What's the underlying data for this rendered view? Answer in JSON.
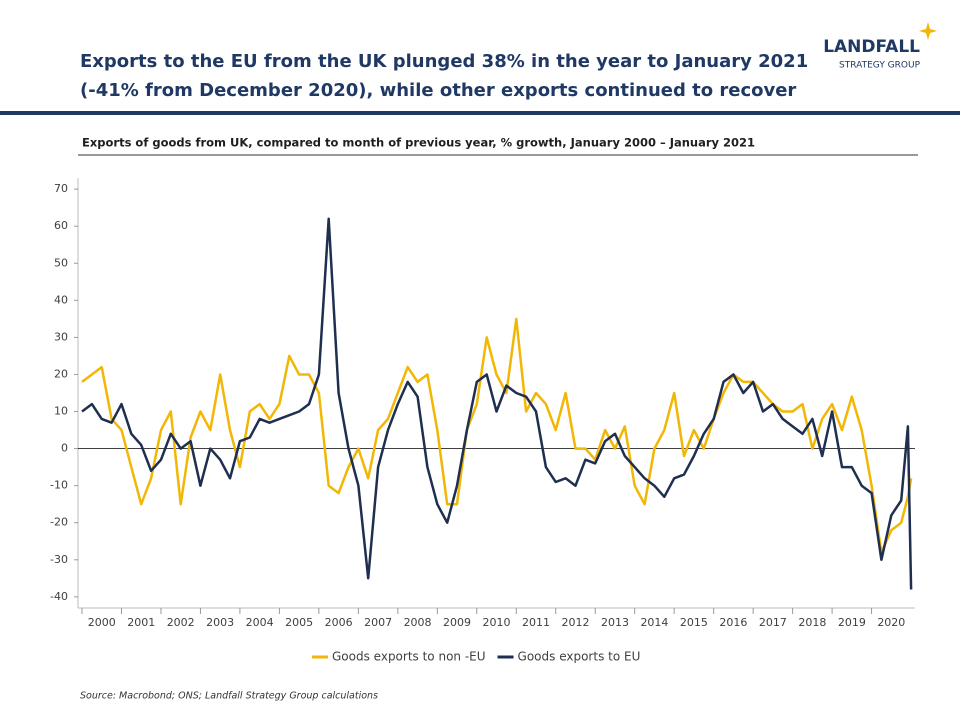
{
  "header": {
    "title_line1": "Exports to the EU from the UK plunged 38% in the year to January 2021",
    "title_line2": "(-41% from December 2020), while other exports continued to recover",
    "logo_name": "LANDFALL",
    "logo_tagline": "STRATEGY GROUP"
  },
  "chart_data": {
    "type": "line",
    "subtitle": "Exports of goods from UK, compared to month of previous year, % growth, January 2000 – January 2021",
    "x": [
      2000,
      2000.25,
      2000.5,
      2000.75,
      2001,
      2001.25,
      2001.5,
      2001.75,
      2002,
      2002.25,
      2002.5,
      2002.75,
      2003,
      2003.25,
      2003.5,
      2003.75,
      2004,
      2004.25,
      2004.5,
      2004.75,
      2005,
      2005.25,
      2005.5,
      2005.75,
      2006,
      2006.25,
      2006.5,
      2006.75,
      2007,
      2007.25,
      2007.5,
      2007.75,
      2008,
      2008.25,
      2008.5,
      2008.75,
      2009,
      2009.25,
      2009.5,
      2009.75,
      2010,
      2010.25,
      2010.5,
      2010.75,
      2011,
      2011.25,
      2011.5,
      2011.75,
      2012,
      2012.25,
      2012.5,
      2012.75,
      2013,
      2013.25,
      2013.5,
      2013.75,
      2014,
      2014.25,
      2014.5,
      2014.75,
      2015,
      2015.25,
      2015.5,
      2015.75,
      2016,
      2016.25,
      2016.5,
      2016.75,
      2017,
      2017.25,
      2017.5,
      2017.75,
      2018,
      2018.25,
      2018.5,
      2018.75,
      2019,
      2019.25,
      2019.5,
      2019.75,
      2020,
      2020.25,
      2020.5,
      2020.75,
      2020.92,
      2021
    ],
    "series": [
      {
        "name": "Goods exports to non -EU",
        "color": "#f2b705",
        "values": [
          18,
          20,
          22,
          8,
          5,
          -5,
          -15,
          -8,
          5,
          10,
          -15,
          3,
          10,
          5,
          20,
          5,
          -5,
          10,
          12,
          8,
          12,
          25,
          20,
          20,
          15,
          -10,
          -12,
          -5,
          0,
          -8,
          5,
          8,
          15,
          22,
          18,
          20,
          5,
          -15,
          -15,
          5,
          12,
          30,
          20,
          15,
          35,
          10,
          15,
          12,
          5,
          15,
          0,
          0,
          -3,
          5,
          0,
          6,
          -10,
          -15,
          0,
          5,
          15,
          -2,
          5,
          0,
          8,
          15,
          20,
          18,
          18,
          15,
          12,
          10,
          10,
          12,
          0,
          8,
          12,
          5,
          14,
          5,
          -10,
          -28,
          -22,
          -20,
          -13,
          -8
        ]
      },
      {
        "name": "Goods exports to EU",
        "color": "#1f2f50",
        "values": [
          10,
          12,
          8,
          7,
          12,
          4,
          1,
          -6,
          -3,
          4,
          0,
          2,
          -10,
          0,
          -3,
          -8,
          2,
          3,
          8,
          7,
          8,
          9,
          10,
          12,
          20,
          62,
          15,
          0,
          -10,
          -35,
          -5,
          5,
          12,
          18,
          14,
          -5,
          -15,
          -20,
          -10,
          5,
          18,
          20,
          10,
          17,
          15,
          14,
          10,
          -5,
          -9,
          -8,
          -10,
          -3,
          -4,
          2,
          4,
          -2,
          -5,
          -8,
          -10,
          -13,
          -8,
          -7,
          -2,
          4,
          8,
          18,
          20,
          15,
          18,
          10,
          12,
          8,
          6,
          4,
          8,
          -2,
          10,
          -5,
          -5,
          -10,
          -12,
          -30,
          -18,
          -14,
          6,
          -38
        ]
      }
    ],
    "xlim": [
      2000,
      2021.1
    ],
    "xticks": [
      2000,
      2001,
      2002,
      2003,
      2004,
      2005,
      2006,
      2007,
      2008,
      2009,
      2010,
      2011,
      2012,
      2013,
      2014,
      2015,
      2016,
      2017,
      2018,
      2019,
      2020
    ],
    "ylim": [
      -43,
      73
    ],
    "yticks": [
      -40,
      -30,
      -20,
      -10,
      0,
      10,
      20,
      30,
      40,
      50,
      60,
      70
    ],
    "legend": "bottom",
    "source": "Source: Macrobond;  ONS; Landfall Strategy Group calculations"
  }
}
